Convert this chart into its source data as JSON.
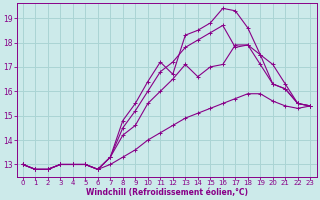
{
  "xlabel": "Windchill (Refroidissement éolien,°C)",
  "bg_color": "#cceaea",
  "grid_color": "#aad4d4",
  "line_color": "#880088",
  "xlim": [
    -0.5,
    23.5
  ],
  "ylim": [
    12.5,
    19.6
  ],
  "xticks": [
    0,
    1,
    2,
    3,
    4,
    5,
    6,
    7,
    8,
    9,
    10,
    11,
    12,
    13,
    14,
    15,
    16,
    17,
    18,
    19,
    20,
    21,
    22,
    23
  ],
  "yticks": [
    13,
    14,
    15,
    16,
    17,
    18,
    19
  ],
  "series": [
    [
      13.0,
      12.8,
      12.8,
      13.0,
      13.0,
      13.0,
      12.8,
      13.3,
      14.2,
      14.6,
      15.5,
      16.0,
      16.5,
      17.1,
      16.6,
      17.0,
      17.1,
      17.9,
      17.9,
      17.1,
      16.3,
      16.1,
      15.5,
      15.4
    ],
    [
      13.0,
      12.8,
      12.8,
      13.0,
      13.0,
      13.0,
      12.8,
      13.3,
      14.8,
      15.5,
      16.4,
      17.2,
      16.7,
      18.3,
      18.5,
      18.8,
      19.4,
      19.3,
      18.6,
      17.5,
      17.1,
      16.3,
      15.5,
      15.4
    ],
    [
      13.0,
      12.8,
      12.8,
      13.0,
      13.0,
      13.0,
      12.8,
      13.3,
      14.5,
      15.2,
      16.0,
      16.8,
      17.2,
      17.8,
      18.1,
      18.4,
      18.7,
      17.8,
      17.9,
      17.5,
      16.3,
      16.1,
      15.5,
      15.4
    ],
    [
      13.0,
      12.8,
      12.8,
      13.0,
      13.0,
      13.0,
      12.8,
      13.0,
      13.3,
      13.6,
      14.0,
      14.3,
      14.6,
      14.9,
      15.1,
      15.3,
      15.5,
      15.7,
      15.9,
      15.9,
      15.6,
      15.4,
      15.3,
      15.4
    ]
  ]
}
